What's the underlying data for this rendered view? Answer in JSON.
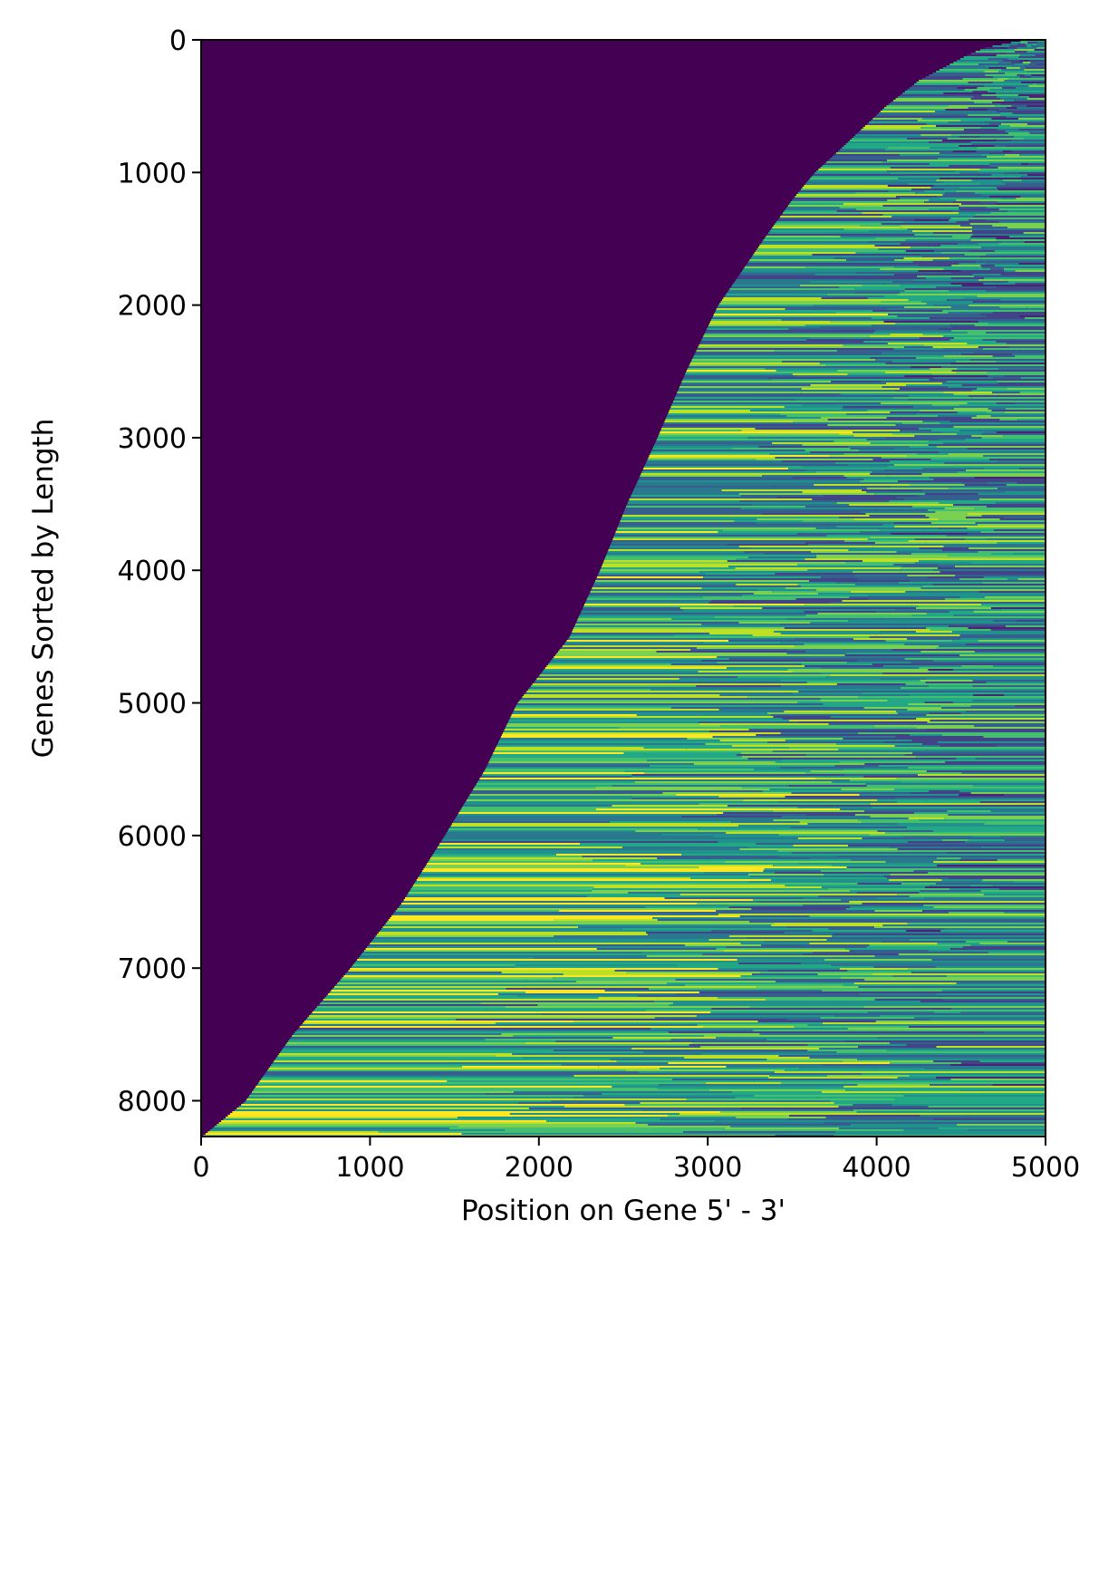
{
  "chart_data": {
    "type": "heatmap",
    "title": "",
    "xlabel": "Position on Gene 5' - 3'",
    "ylabel": "Genes Sorted by Length",
    "xlim": [
      0,
      5000
    ],
    "ylim": [
      8270,
      0
    ],
    "y_inverted": true,
    "x_ticks": [
      0,
      1000,
      2000,
      3000,
      4000,
      5000
    ],
    "y_ticks": [
      0,
      1000,
      2000,
      3000,
      4000,
      5000,
      6000,
      7000,
      8000
    ],
    "x_tick_labels": [
      "0",
      "1000",
      "2000",
      "3000",
      "4000",
      "5000"
    ],
    "y_tick_labels": [
      "0",
      "1000",
      "2000",
      "3000",
      "4000",
      "5000",
      "6000",
      "7000",
      "8000"
    ],
    "colormap": "viridis",
    "fill_color": "#440154",
    "boundary": {
      "description": "start position of the coverage signal for each gene row",
      "gene_index": [
        0,
        50,
        100,
        200,
        300,
        500,
        800,
        1000,
        1200,
        1500,
        2000,
        2500,
        3000,
        3500,
        4000,
        4500,
        5000,
        5500,
        6000,
        6500,
        7000,
        7500,
        8000,
        8270
      ],
      "start_position": [
        4850,
        4650,
        4550,
        4400,
        4250,
        4050,
        3800,
        3630,
        3500,
        3330,
        3060,
        2870,
        2700,
        2520,
        2360,
        2180,
        1870,
        1680,
        1440,
        1190,
        880,
        540,
        260,
        0
      ]
    }
  }
}
